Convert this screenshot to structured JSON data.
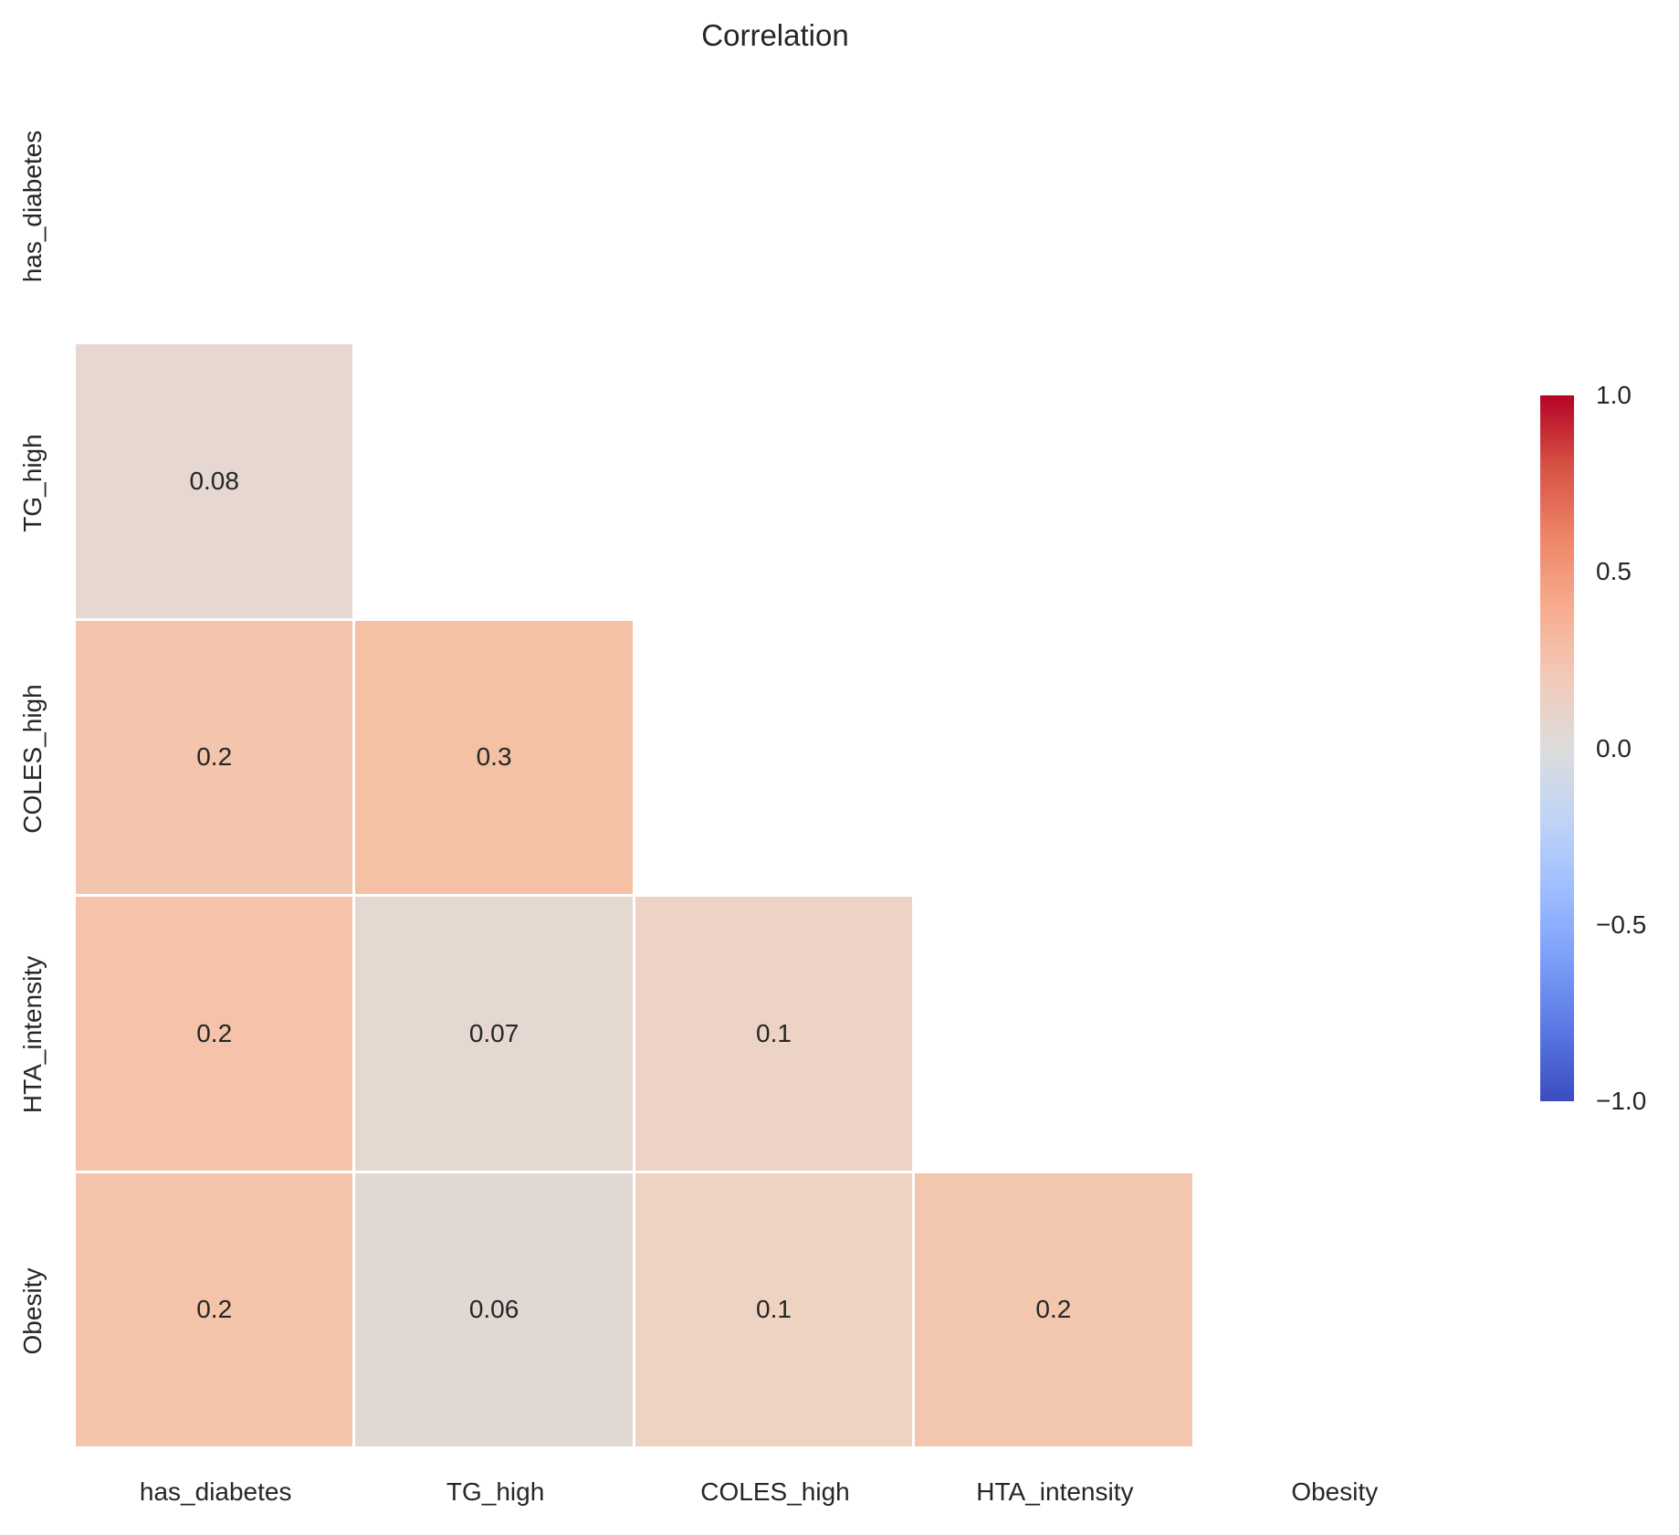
{
  "chart_data": {
    "type": "heatmap",
    "title": "Correlation",
    "categories": [
      "has_diabetes",
      "TG_high",
      "COLES_high",
      "HTA_intensity",
      "Obesity"
    ],
    "mask": "upper triangle and diagonal hidden (blank)",
    "grid": "thin white gridlines between cells, no axis spines, no tick marks",
    "cells": [
      {
        "row": 1,
        "col": 0,
        "row_label": "TG_high",
        "col_label": "has_diabetes",
        "value": 0.08,
        "label": "0.08",
        "color": "#e6d8d0"
      },
      {
        "row": 2,
        "col": 0,
        "row_label": "COLES_high",
        "col_label": "has_diabetes",
        "value": 0.2,
        "label": "0.2",
        "color": "#f3c5ac"
      },
      {
        "row": 2,
        "col": 1,
        "row_label": "COLES_high",
        "col_label": "TG_high",
        "value": 0.3,
        "label": "0.3",
        "color": "#f4c1a5"
      },
      {
        "row": 3,
        "col": 0,
        "row_label": "HTA_intensity",
        "col_label": "has_diabetes",
        "value": 0.2,
        "label": "0.2",
        "color": "#f4c3a9"
      },
      {
        "row": 3,
        "col": 1,
        "row_label": "HTA_intensity",
        "col_label": "TG_high",
        "value": 0.07,
        "label": "0.07",
        "color": "#e5d8d0"
      },
      {
        "row": 3,
        "col": 2,
        "row_label": "HTA_intensity",
        "col_label": "COLES_high",
        "value": 0.1,
        "label": "0.1",
        "color": "#edd3c5"
      },
      {
        "row": 4,
        "col": 0,
        "row_label": "Obesity",
        "col_label": "has_diabetes",
        "value": 0.2,
        "label": "0.2",
        "color": "#f4c4ab"
      },
      {
        "row": 4,
        "col": 1,
        "row_label": "Obesity",
        "col_label": "TG_high",
        "value": 0.06,
        "label": "0.06",
        "color": "#e2d8d3"
      },
      {
        "row": 4,
        "col": 2,
        "row_label": "Obesity",
        "col_label": "COLES_high",
        "value": 0.1,
        "label": "0.1",
        "color": "#efd3c2"
      },
      {
        "row": 4,
        "col": 3,
        "row_label": "Obesity",
        "col_label": "HTA_intensity",
        "value": 0.2,
        "label": "0.2",
        "color": "#f2c7ae"
      }
    ],
    "colorbar": {
      "cmap": "coolwarm",
      "vmin": -1.0,
      "vmax": 1.0,
      "tick_labels": [
        "1.0",
        "0.5",
        "0.0",
        "−0.5",
        "−1.0"
      ],
      "legend_position": "right",
      "gradient_top_to_bottom": [
        "#b40426",
        "#d65244",
        "#ee8468",
        "#f7ac8e",
        "#f2cab9",
        "#dddcdc",
        "#c0d4f5",
        "#9ebeff",
        "#7b9ff9",
        "#5977e3",
        "#3b4cc0"
      ]
    },
    "text_color": "#262626"
  }
}
